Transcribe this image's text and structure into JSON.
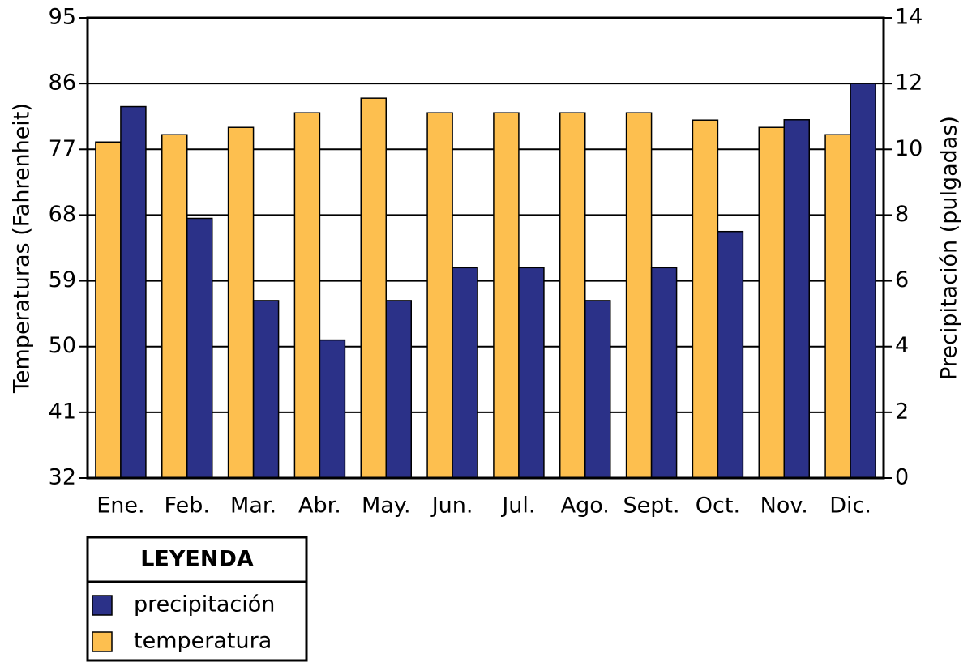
{
  "chart_data": {
    "type": "bar",
    "y_label": "Temperaturas (Fahrenheit)",
    "y2_label": "Precipitación (pulgadas)",
    "categories": [
      "Ene.",
      "Feb.",
      "Mar.",
      "Abr.",
      "May.",
      "Jun.",
      "Jul.",
      "Ago.",
      "Sept.",
      "Oct.",
      "Nov.",
      "Dic."
    ],
    "series": [
      {
        "name": "temperatura",
        "color": "#fdbf4f",
        "axis": "y",
        "values": [
          78,
          79,
          80,
          82,
          84,
          82,
          82,
          82,
          82,
          81,
          80,
          79
        ]
      },
      {
        "name": "precipitación",
        "color": "#2b3188",
        "axis": "y2",
        "values": [
          11.3,
          7.9,
          5.4,
          4.2,
          5.4,
          6.4,
          6.4,
          5.4,
          6.4,
          7.5,
          10.9,
          12
        ]
      }
    ],
    "ylim": [
      32,
      95
    ],
    "yticks": [
      32,
      41,
      50,
      59,
      68,
      77,
      86,
      95
    ],
    "y2lim": [
      0,
      14
    ],
    "y2ticks": [
      0,
      2,
      4,
      6,
      8,
      10,
      12,
      14
    ],
    "grid": true,
    "legend": {
      "title": "LEYENDA"
    }
  }
}
